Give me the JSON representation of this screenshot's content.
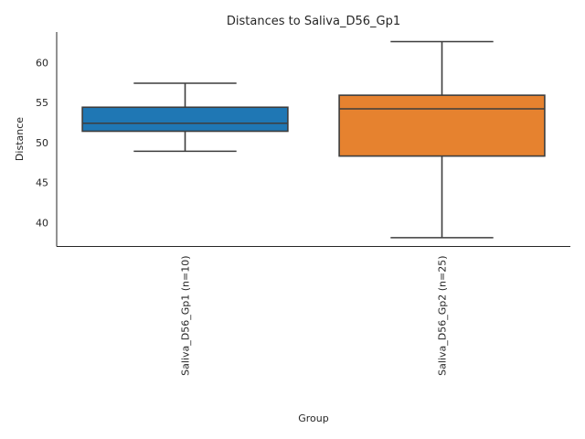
{
  "chart_data": {
    "type": "box",
    "title": "Distances to Saliva_D56_Gp1",
    "xlabel": "Group",
    "ylabel": "Distance",
    "ylim": [
      37.0,
      63.8
    ],
    "yticks": [
      40,
      45,
      50,
      55,
      60
    ],
    "grid": false,
    "groups": [
      {
        "label": "Saliva_D56_Gp1 (n=10)",
        "color": "#1f77b4",
        "whisker_low": 48.9,
        "q1": 51.4,
        "median": 52.4,
        "q3": 54.4,
        "whisker_high": 57.4
      },
      {
        "label": "Saliva_D56_Gp2 (n=25)",
        "color": "#e6822f",
        "whisker_low": 38.1,
        "q1": 48.3,
        "median": 54.2,
        "q3": 55.9,
        "whisker_high": 62.6
      }
    ]
  }
}
